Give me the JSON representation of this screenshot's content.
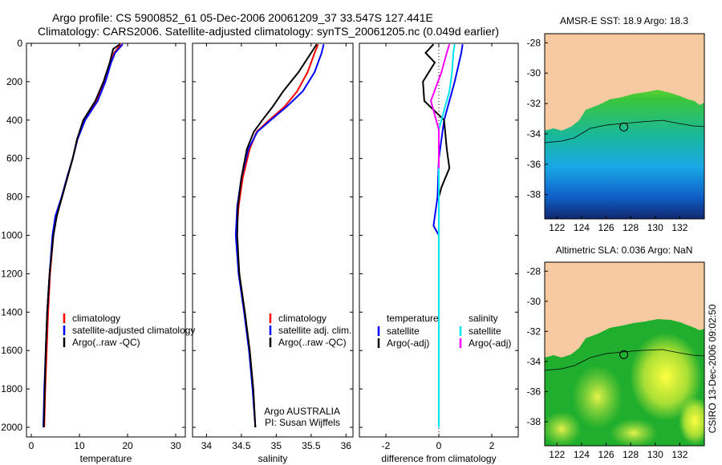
{
  "header": {
    "line1": "Argo profile: CS 5900852_61 05-Dec-2006 20061209_37 33.547S 127.441E",
    "line2": "Climatology: CARS2006. Satellite-adjusted climatology: synTS_20061205.nc (0.049d earlier)"
  },
  "credit": "CSIRO 13-Dec-2006 09:02:50",
  "colors": {
    "climatology": "#ff0000",
    "satellite": "#0000ff",
    "argo": "#000000",
    "sat_diff": "#00e5ee",
    "argo_adj_diff": "#ff00ff",
    "land": "#f7c9a0"
  },
  "chart_data": [
    {
      "type": "line",
      "id": "temperature",
      "xlabel": "temperature",
      "xlim": [
        -1,
        32
      ],
      "ylim": [
        2050,
        0
      ],
      "xticks": [
        0,
        10,
        20,
        30
      ],
      "xticklabels": [
        "0",
        "10",
        "20",
        "30"
      ],
      "yticks": [
        0,
        200,
        400,
        600,
        800,
        1000,
        1200,
        1400,
        1600,
        1800,
        2000
      ],
      "yticklabels": [
        "0",
        "200",
        "400",
        "600",
        "800",
        "1000",
        "1200",
        "1400",
        "1600",
        "1800",
        "2000"
      ],
      "legend": [
        "climatology",
        "satellite-adjusted climatology",
        "Argo(..raw -QC)"
      ],
      "series": [
        {
          "name": "climatology",
          "color": "#ff0000",
          "points": [
            [
              18.6,
              5
            ],
            [
              17.2,
              50
            ],
            [
              16.5,
              100
            ],
            [
              15.2,
              200
            ],
            [
              13.5,
              300
            ],
            [
              11.0,
              400
            ],
            [
              9.6,
              500
            ],
            [
              8.6,
              600
            ],
            [
              7.5,
              700
            ],
            [
              6.4,
              800
            ],
            [
              5.2,
              900
            ],
            [
              4.6,
              1000
            ],
            [
              3.9,
              1200
            ],
            [
              3.5,
              1400
            ],
            [
              3.2,
              1600
            ],
            [
              2.9,
              1800
            ],
            [
              2.7,
              2000
            ]
          ]
        },
        {
          "name": "satellite-adjusted climatology",
          "color": "#0000ff",
          "points": [
            [
              19.0,
              5
            ],
            [
              17.4,
              50
            ],
            [
              16.6,
              100
            ],
            [
              15.4,
              200
            ],
            [
              13.8,
              300
            ],
            [
              11.2,
              400
            ],
            [
              9.6,
              500
            ],
            [
              8.6,
              600
            ],
            [
              7.4,
              700
            ],
            [
              6.3,
              800
            ],
            [
              5.0,
              900
            ],
            [
              4.4,
              1000
            ],
            [
              3.8,
              1200
            ],
            [
              3.3,
              1400
            ],
            [
              3.0,
              1600
            ],
            [
              2.7,
              1800
            ],
            [
              2.5,
              2000
            ]
          ]
        },
        {
          "name": "Argo(..raw -QC)",
          "color": "#000000",
          "points": [
            [
              18.4,
              5
            ],
            [
              17.0,
              30
            ],
            [
              16.3,
              100
            ],
            [
              15.0,
              200
            ],
            [
              13.3,
              300
            ],
            [
              10.8,
              400
            ],
            [
              9.5,
              500
            ],
            [
              8.6,
              600
            ],
            [
              7.5,
              700
            ],
            [
              6.4,
              800
            ],
            [
              5.3,
              900
            ],
            [
              4.6,
              1000
            ],
            [
              3.8,
              1200
            ],
            [
              3.3,
              1400
            ],
            [
              3.0,
              1600
            ],
            [
              2.8,
              1800
            ],
            [
              2.6,
              2000
            ]
          ]
        }
      ]
    },
    {
      "type": "line",
      "id": "salinity",
      "xlabel": "salinity",
      "xlim": [
        33.8,
        36.1
      ],
      "ylim": [
        2050,
        0
      ],
      "xticks": [
        34,
        34.5,
        35,
        35.5,
        36
      ],
      "xticklabels": [
        "34",
        "34.5",
        "35",
        "35.5",
        "36"
      ],
      "legend": [
        "climatology",
        "satellite adj. clim.",
        "Argo(..raw -QC)"
      ],
      "annotation": [
        "Argo AUSTRALIA",
        "PI: Susan Wijffels"
      ],
      "series": [
        {
          "name": "climatology",
          "color": "#ff0000",
          "points": [
            [
              35.6,
              5
            ],
            [
              35.55,
              50
            ],
            [
              35.45,
              150
            ],
            [
              35.3,
              250
            ],
            [
              35.12,
              330
            ],
            [
              34.9,
              400
            ],
            [
              34.72,
              460
            ],
            [
              34.62,
              550
            ],
            [
              34.52,
              700
            ],
            [
              34.46,
              850
            ],
            [
              34.43,
              1000
            ],
            [
              34.47,
              1200
            ],
            [
              34.55,
              1400
            ],
            [
              34.62,
              1600
            ],
            [
              34.67,
              1800
            ],
            [
              34.7,
              2000
            ]
          ]
        },
        {
          "name": "satellite adj. clim.",
          "color": "#0000ff",
          "points": [
            [
              35.68,
              5
            ],
            [
              35.65,
              50
            ],
            [
              35.55,
              150
            ],
            [
              35.38,
              250
            ],
            [
              35.15,
              330
            ],
            [
              34.92,
              400
            ],
            [
              34.73,
              460
            ],
            [
              34.6,
              550
            ],
            [
              34.5,
              700
            ],
            [
              34.44,
              850
            ],
            [
              34.42,
              1000
            ],
            [
              34.46,
              1200
            ],
            [
              34.54,
              1400
            ],
            [
              34.61,
              1600
            ],
            [
              34.66,
              1800
            ],
            [
              34.7,
              2000
            ]
          ]
        },
        {
          "name": "Argo(..raw -QC)",
          "color": "#000000",
          "points": [
            [
              35.58,
              5
            ],
            [
              35.5,
              50
            ],
            [
              35.32,
              150
            ],
            [
              35.1,
              250
            ],
            [
              34.95,
              330
            ],
            [
              34.8,
              400
            ],
            [
              34.68,
              460
            ],
            [
              34.58,
              550
            ],
            [
              34.5,
              700
            ],
            [
              34.45,
              850
            ],
            [
              34.44,
              1000
            ],
            [
              34.47,
              1200
            ],
            [
              34.55,
              1400
            ],
            [
              34.62,
              1600
            ],
            [
              34.67,
              1800
            ],
            [
              34.7,
              2000
            ]
          ]
        }
      ]
    },
    {
      "type": "line",
      "id": "difference",
      "xlabel": "difference from climatology",
      "xlim": [
        -3,
        3
      ],
      "ylim": [
        2050,
        0
      ],
      "xticks": [
        -2,
        0,
        2
      ],
      "xticklabels": [
        "-2",
        "0",
        "2"
      ],
      "legend_groups": [
        {
          "title": "temperature",
          "items": [
            "satellite",
            "Argo(-adj)"
          ]
        },
        {
          "title": "salinity",
          "items": [
            "satellite",
            "Argo(-adj)"
          ]
        }
      ],
      "series": [
        {
          "name": "temperature satellite",
          "color": "#0000ff",
          "points": [
            [
              0.9,
              5
            ],
            [
              0.85,
              50
            ],
            [
              0.6,
              200
            ],
            [
              0.2,
              400
            ],
            [
              0.0,
              600
            ],
            [
              -0.05,
              800
            ],
            [
              -0.2,
              950
            ],
            [
              0.0,
              1000
            ],
            [
              0.0,
              2000
            ]
          ]
        },
        {
          "name": "temperature Argo(-adj)",
          "color": "#000000",
          "points": [
            [
              -0.2,
              5
            ],
            [
              -0.5,
              50
            ],
            [
              -0.15,
              100
            ],
            [
              -0.6,
              200
            ],
            [
              -0.55,
              300
            ],
            [
              0.2,
              400
            ],
            [
              0.3,
              550
            ],
            [
              0.4,
              650
            ],
            [
              0.1,
              750
            ],
            [
              0.0,
              800
            ],
            [
              0.0,
              900
            ]
          ]
        },
        {
          "name": "salinity satellite",
          "color": "#00e5ee",
          "points": [
            [
              0.6,
              5
            ],
            [
              0.55,
              50
            ],
            [
              0.5,
              150
            ],
            [
              0.4,
              250
            ],
            [
              0.2,
              350
            ],
            [
              0.0,
              450
            ],
            [
              0.0,
              2000
            ]
          ]
        },
        {
          "name": "salinity Argo(-adj)",
          "color": "#ff00ff",
          "points": [
            [
              0.4,
              5
            ],
            [
              0.3,
              50
            ],
            [
              0.1,
              150
            ],
            [
              -0.3,
              300
            ],
            [
              0.0,
              450
            ],
            [
              0.0,
              650
            ]
          ]
        }
      ]
    },
    {
      "type": "heatmap",
      "id": "sst-map",
      "title": "AMSR-E SST: 18.9 Argo: 18.3",
      "xlim": [
        121,
        134
      ],
      "ylim": [
        -39.6,
        -27.4
      ],
      "xticks": [
        122,
        124,
        126,
        128,
        130,
        132
      ],
      "xticklabels": [
        "122",
        "124",
        "126",
        "128",
        "130",
        "132"
      ],
      "yticks": [
        -28,
        -30,
        -32,
        -34,
        -36,
        -38
      ],
      "yticklabels": [
        "-28",
        "-30",
        "-32",
        "-34",
        "-36",
        "-38"
      ],
      "float_position": [
        127.441,
        -33.547
      ]
    },
    {
      "type": "heatmap",
      "id": "sla-map",
      "title": "Altimetric SLA: 0.036 Argo: NaN",
      "xlim": [
        121,
        134
      ],
      "ylim": [
        -39.6,
        -27.4
      ],
      "xticks": [
        122,
        124,
        126,
        128,
        130,
        132
      ],
      "xticklabels": [
        "122",
        "124",
        "126",
        "128",
        "130",
        "132"
      ],
      "yticks": [
        -28,
        -30,
        -32,
        -34,
        -36,
        -38
      ],
      "yticklabels": [
        "-28",
        "-30",
        "-32",
        "-34",
        "-36",
        "-38"
      ],
      "float_position": [
        127.441,
        -33.547
      ]
    }
  ]
}
